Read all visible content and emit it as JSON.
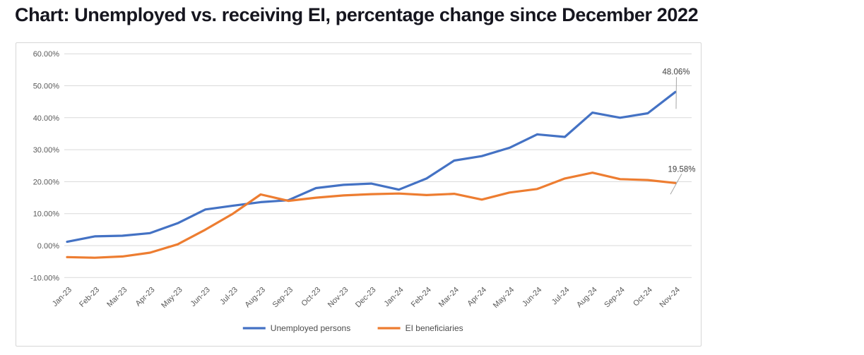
{
  "title": "Chart: Unemployed vs. receiving EI, percentage change since December 2022",
  "colors": {
    "title_text": "#16161f",
    "grid_line": "#d9d9d9",
    "axis_label": "#595959",
    "data_label": "#404040",
    "leader_line": "#a6a6a6",
    "card_border": "#d6d6d6",
    "series_blue": "#4472C4",
    "series_orange": "#ED7D31"
  },
  "chart_data": {
    "type": "line",
    "title": "Chart: Unemployed vs. receiving EI, percentage change since December 2022",
    "categories": [
      "Jan-23",
      "Feb-23",
      "Mar-23",
      "Apr-23",
      "May-23",
      "Jun-23",
      "Jul-23",
      "Aug-23",
      "Sep-23",
      "Oct-23",
      "Nov-23",
      "Dec-23",
      "Jan-24",
      "Feb-24",
      "Mar-24",
      "Apr-24",
      "May-24",
      "Jun-24",
      "Jul-24",
      "Aug-24",
      "Sep-24",
      "Oct-24",
      "Nov-24"
    ],
    "series": [
      {
        "name": "Unemployed persons",
        "color": "#4472C4",
        "values": [
          1.2,
          2.9,
          3.1,
          3.9,
          7.0,
          11.3,
          12.5,
          13.6,
          14.2,
          18.0,
          19.0,
          19.4,
          17.5,
          21.0,
          26.6,
          28.0,
          30.6,
          34.8,
          34.0,
          41.6,
          40.0,
          41.4,
          48.06
        ],
        "end_label": "48.06%"
      },
      {
        "name": "EI beneficiaries",
        "color": "#ED7D31",
        "values": [
          -3.6,
          -3.8,
          -3.4,
          -2.2,
          0.4,
          5.0,
          10.0,
          16.0,
          14.0,
          15.0,
          15.7,
          16.1,
          16.3,
          15.8,
          16.2,
          14.4,
          16.6,
          17.7,
          21.0,
          22.8,
          20.8,
          20.5,
          19.58
        ],
        "end_label": "19.58%"
      }
    ],
    "ylim": [
      -10,
      60
    ],
    "y_tick_step": 10,
    "y_tick_labels": [
      "60.00%",
      "50.00%",
      "40.00%",
      "30.00%",
      "20.00%",
      "10.00%",
      "0.00%",
      "-10.00%"
    ],
    "grid": true,
    "legend_position": "bottom"
  }
}
